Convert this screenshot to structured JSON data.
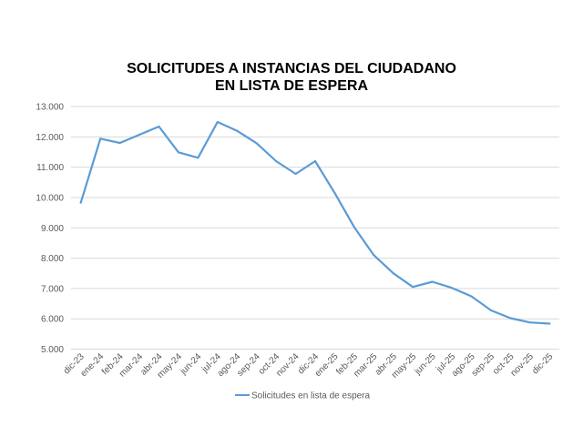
{
  "chart_data": {
    "type": "line",
    "title_lines": [
      "SOLICITUDES A INSTANCIAS DEL CIUDADANO",
      "EN LISTA DE ESPERA"
    ],
    "xlabel": "",
    "ylabel": "",
    "categories": [
      "dic-23",
      "ene-24",
      "feb-24",
      "mar-24",
      "abr-24",
      "may-24",
      "jun-24",
      "jul-24",
      "ago-24",
      "sep-24",
      "oct-24",
      "nov-24",
      "dic-24",
      "ene-25",
      "feb-25",
      "mar-25",
      "abr-25",
      "may-25",
      "jun-25",
      "jul-25",
      "ago-25",
      "sep-25",
      "oct-25",
      "nov-25",
      "dic-25"
    ],
    "series": [
      {
        "name": "Solicitudes en lista de espera",
        "color": "#5B9BD5",
        "values": [
          9830,
          11940,
          11800,
          12070,
          12340,
          11490,
          11310,
          12490,
          12200,
          11790,
          11200,
          10780,
          11200,
          10150,
          9020,
          8100,
          7500,
          7050,
          7220,
          7020,
          6740,
          6280,
          6020,
          5880,
          5840
        ]
      }
    ],
    "ylim": [
      5000,
      13000
    ],
    "yticks": [
      5000,
      6000,
      7000,
      8000,
      9000,
      10000,
      11000,
      12000,
      13000
    ],
    "ytick_labels": [
      "5.000",
      "6.000",
      "7.000",
      "8.000",
      "9.000",
      "10.000",
      "11.000",
      "12.000",
      "13.000"
    ],
    "grid": true,
    "gridline_color": "#D9D9D9",
    "legend_position": "bottom"
  }
}
